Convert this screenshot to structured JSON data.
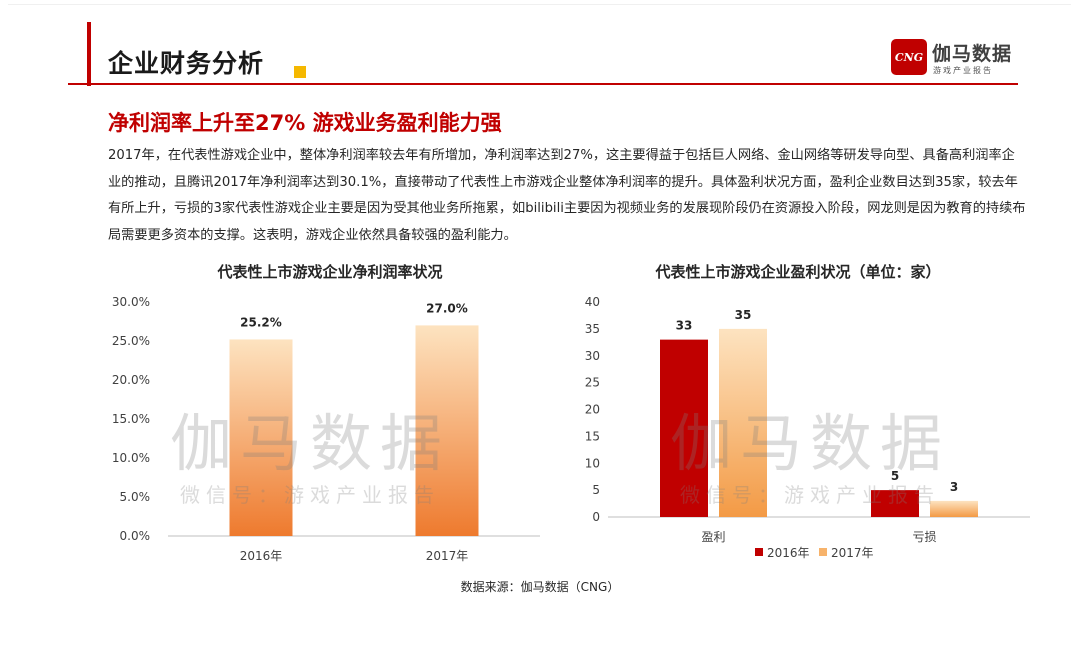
{
  "header": {
    "title": "企业财务分析",
    "logo_mark": "CNG",
    "logo_name": "伽马数据",
    "logo_sub": "游戏产业报告"
  },
  "subtitle": "净利润率上升至27%  游戏业务盈利能力强",
  "body_text": "2017年，在代表性游戏企业中，整体净利润率较去年有所增加，净利润率达到27%，这主要得益于包括巨人网络、金山网络等研发导向型、具备高利润率企业的推动，且腾讯2017年净利润率达到30.1%，直接带动了代表性上市游戏企业整体净利润率的提升。具体盈利状况方面，盈利企业数目达到35家，较去年有所上升，亏损的3家代表性游戏企业主要是因为受其他业务所拖累，如bilibili主要因为视频业务的发展现阶段仍在资源投入阶段，网龙则是因为教育的持续布局需要更多资本的支撑。这表明，游戏企业依然具备较强的盈利能力。",
  "watermark": {
    "main": "伽马数据",
    "sub": "微信号：游戏产业报告"
  },
  "source": "数据来源：伽马数据（CNG）",
  "colors": {
    "brand_red": "#c00000",
    "accent_yellow": "#f5b800",
    "orange_top": "#fbd9a8",
    "orange_bottom": "#ed7d31",
    "dark_red": "#c00000"
  },
  "chart_data": [
    {
      "type": "bar",
      "title": "代表性上市游戏企业净利润率状况",
      "categories": [
        "2016年",
        "2017年"
      ],
      "values": [
        25.2,
        27.0
      ],
      "value_labels": [
        "25.2%",
        "27.0%"
      ],
      "ylim": [
        0,
        30
      ],
      "yticks": [
        "0.0%",
        "5.0%",
        "10.0%",
        "15.0%",
        "20.0%",
        "25.0%",
        "30.0%"
      ],
      "grid": false,
      "legend": "none"
    },
    {
      "type": "bar",
      "title": "代表性上市游戏企业盈利状况（单位：家）",
      "categories": [
        "盈利",
        "亏损"
      ],
      "series": [
        {
          "name": "2016年",
          "values": [
            33,
            5
          ],
          "color": "#c00000"
        },
        {
          "name": "2017年",
          "values": [
            35,
            3
          ],
          "color": "#f7b36b"
        }
      ],
      "ylim": [
        0,
        40
      ],
      "yticks": [
        "0",
        "5",
        "10",
        "15",
        "20",
        "25",
        "30",
        "35",
        "40"
      ],
      "grid": false,
      "legend": "bottom"
    }
  ]
}
